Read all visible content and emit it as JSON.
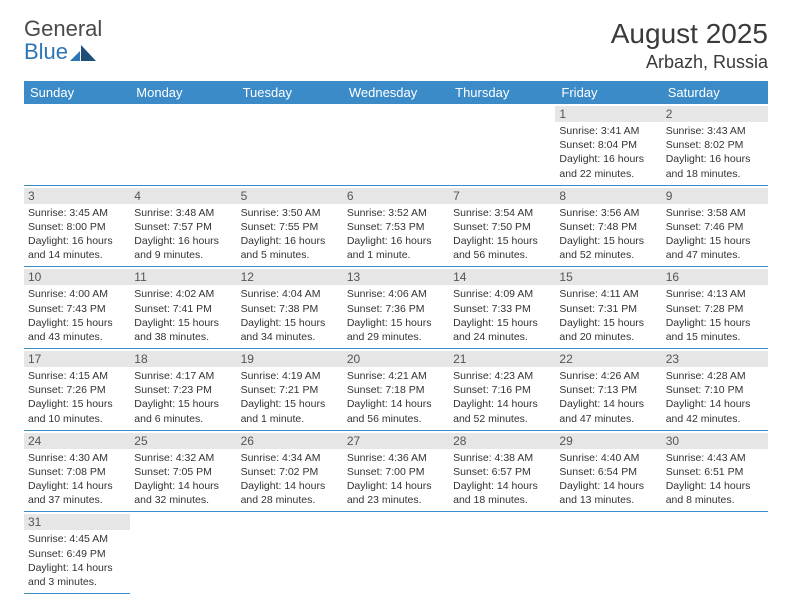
{
  "logo": {
    "gray": "General",
    "blue": "Blue"
  },
  "title": "August 2025",
  "location": "Arbazh, Russia",
  "colors": {
    "header_bg": "#3b8bc9",
    "header_text": "#ffffff",
    "rule": "#3b8bc9",
    "daynum_bg": "#e6e6e6",
    "body_text": "#333333",
    "logo_gray": "#4a4a4a",
    "logo_blue": "#2e75b6"
  },
  "dayNames": [
    "Sunday",
    "Monday",
    "Tuesday",
    "Wednesday",
    "Thursday",
    "Friday",
    "Saturday"
  ],
  "weeks": [
    [
      null,
      null,
      null,
      null,
      null,
      {
        "n": "1",
        "sr": "3:41 AM",
        "ss": "8:04 PM",
        "dl": "16 hours and 22 minutes."
      },
      {
        "n": "2",
        "sr": "3:43 AM",
        "ss": "8:02 PM",
        "dl": "16 hours and 18 minutes."
      }
    ],
    [
      {
        "n": "3",
        "sr": "3:45 AM",
        "ss": "8:00 PM",
        "dl": "16 hours and 14 minutes."
      },
      {
        "n": "4",
        "sr": "3:48 AM",
        "ss": "7:57 PM",
        "dl": "16 hours and 9 minutes."
      },
      {
        "n": "5",
        "sr": "3:50 AM",
        "ss": "7:55 PM",
        "dl": "16 hours and 5 minutes."
      },
      {
        "n": "6",
        "sr": "3:52 AM",
        "ss": "7:53 PM",
        "dl": "16 hours and 1 minute."
      },
      {
        "n": "7",
        "sr": "3:54 AM",
        "ss": "7:50 PM",
        "dl": "15 hours and 56 minutes."
      },
      {
        "n": "8",
        "sr": "3:56 AM",
        "ss": "7:48 PM",
        "dl": "15 hours and 52 minutes."
      },
      {
        "n": "9",
        "sr": "3:58 AM",
        "ss": "7:46 PM",
        "dl": "15 hours and 47 minutes."
      }
    ],
    [
      {
        "n": "10",
        "sr": "4:00 AM",
        "ss": "7:43 PM",
        "dl": "15 hours and 43 minutes."
      },
      {
        "n": "11",
        "sr": "4:02 AM",
        "ss": "7:41 PM",
        "dl": "15 hours and 38 minutes."
      },
      {
        "n": "12",
        "sr": "4:04 AM",
        "ss": "7:38 PM",
        "dl": "15 hours and 34 minutes."
      },
      {
        "n": "13",
        "sr": "4:06 AM",
        "ss": "7:36 PM",
        "dl": "15 hours and 29 minutes."
      },
      {
        "n": "14",
        "sr": "4:09 AM",
        "ss": "7:33 PM",
        "dl": "15 hours and 24 minutes."
      },
      {
        "n": "15",
        "sr": "4:11 AM",
        "ss": "7:31 PM",
        "dl": "15 hours and 20 minutes."
      },
      {
        "n": "16",
        "sr": "4:13 AM",
        "ss": "7:28 PM",
        "dl": "15 hours and 15 minutes."
      }
    ],
    [
      {
        "n": "17",
        "sr": "4:15 AM",
        "ss": "7:26 PM",
        "dl": "15 hours and 10 minutes."
      },
      {
        "n": "18",
        "sr": "4:17 AM",
        "ss": "7:23 PM",
        "dl": "15 hours and 6 minutes."
      },
      {
        "n": "19",
        "sr": "4:19 AM",
        "ss": "7:21 PM",
        "dl": "15 hours and 1 minute."
      },
      {
        "n": "20",
        "sr": "4:21 AM",
        "ss": "7:18 PM",
        "dl": "14 hours and 56 minutes."
      },
      {
        "n": "21",
        "sr": "4:23 AM",
        "ss": "7:16 PM",
        "dl": "14 hours and 52 minutes."
      },
      {
        "n": "22",
        "sr": "4:26 AM",
        "ss": "7:13 PM",
        "dl": "14 hours and 47 minutes."
      },
      {
        "n": "23",
        "sr": "4:28 AM",
        "ss": "7:10 PM",
        "dl": "14 hours and 42 minutes."
      }
    ],
    [
      {
        "n": "24",
        "sr": "4:30 AM",
        "ss": "7:08 PM",
        "dl": "14 hours and 37 minutes."
      },
      {
        "n": "25",
        "sr": "4:32 AM",
        "ss": "7:05 PM",
        "dl": "14 hours and 32 minutes."
      },
      {
        "n": "26",
        "sr": "4:34 AM",
        "ss": "7:02 PM",
        "dl": "14 hours and 28 minutes."
      },
      {
        "n": "27",
        "sr": "4:36 AM",
        "ss": "7:00 PM",
        "dl": "14 hours and 23 minutes."
      },
      {
        "n": "28",
        "sr": "4:38 AM",
        "ss": "6:57 PM",
        "dl": "14 hours and 18 minutes."
      },
      {
        "n": "29",
        "sr": "4:40 AM",
        "ss": "6:54 PM",
        "dl": "14 hours and 13 minutes."
      },
      {
        "n": "30",
        "sr": "4:43 AM",
        "ss": "6:51 PM",
        "dl": "14 hours and 8 minutes."
      }
    ],
    [
      {
        "n": "31",
        "sr": "4:45 AM",
        "ss": "6:49 PM",
        "dl": "14 hours and 3 minutes."
      },
      null,
      null,
      null,
      null,
      null,
      null
    ]
  ],
  "labels": {
    "sunrise": "Sunrise: ",
    "sunset": "Sunset: ",
    "daylight": "Daylight: "
  }
}
